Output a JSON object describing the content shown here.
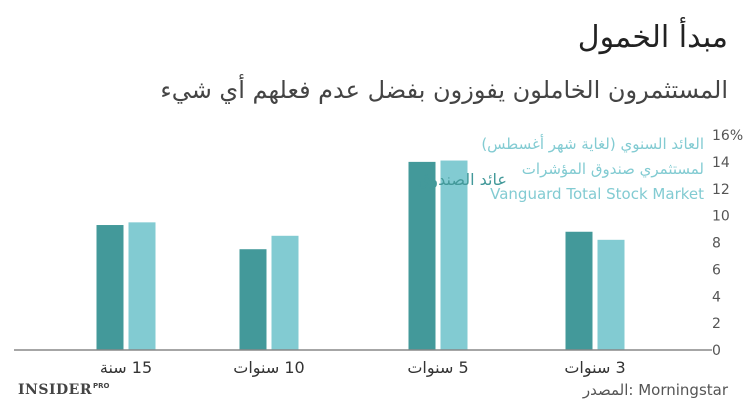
{
  "header": {
    "title": "مبدأ الخمول",
    "subtitle": "المستثمرون الخاملون يفوزون بفضل عدم فعلهم أي شيء"
  },
  "chart_data": {
    "type": "bar",
    "categories": [
      "15 سنة",
      "10 سنوات",
      "5 سنوات",
      "3 سنوات"
    ],
    "series": [
      {
        "name": "عائد الصندوق",
        "values": [
          9.3,
          7.5,
          14.0,
          8.8
        ],
        "color": "#43999a"
      },
      {
        "name": "العائد السنوي (لغاية شهر أغسطس) لمستثمري صندوق المؤشرات Vanguard Total Stock Market",
        "values": [
          9.5,
          8.5,
          14.1,
          8.2
        ],
        "color": "#82cbd2"
      }
    ],
    "legend_lines": [
      "العائد السنوي (لغاية شهر أغسطس)",
      "لمستثمري صندوق المؤشرات",
      "Vanguard Total Stock Market"
    ],
    "yticks": [
      0,
      2,
      4,
      6,
      8,
      10,
      12,
      14,
      16
    ],
    "ymax_label": "16%",
    "ylim": [
      0,
      16
    ],
    "legend_position": "top-right",
    "grid": false
  },
  "footer": {
    "source": "المصدر: Morningstar",
    "logo_text": "INSIDER",
    "logo_sup": "PRO"
  }
}
